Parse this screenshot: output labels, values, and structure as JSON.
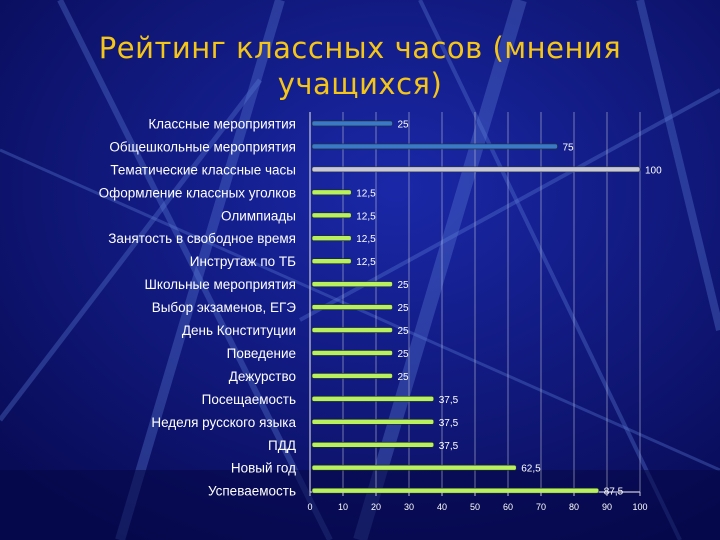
{
  "slide": {
    "title_line1": "Рейтинг классных часов (мнения",
    "title_line2": "учащихся)"
  },
  "colors": {
    "background": "#0b0f6e",
    "title": "#f5c518",
    "bar_green": "#b8f060",
    "bar_blue": "#3a78c8",
    "bar_gray": "#c8c8d8",
    "grid": "#c8c8d8",
    "text": "#ffffff"
  },
  "chart_data": {
    "type": "bar",
    "orientation": "horizontal",
    "categories": [
      "Классные мероприятия",
      "Общешкольные мероприятия",
      "Тематические классные часы",
      "Оформление классных уголков",
      "Олимпиады",
      "Занятость в свободное время",
      "Инструтаж по ТБ",
      "Школьные мероприятия",
      "Выбор экзаменов, ЕГЭ",
      "День Конституции",
      "Поведение",
      "Дежурство",
      "Посещаемость",
      "Неделя русского языка",
      "ПДД",
      "Новый год",
      "Успеваемость"
    ],
    "values": [
      25,
      75,
      100,
      12.5,
      12.5,
      12.5,
      12.5,
      25,
      25,
      25,
      25,
      25,
      37.5,
      37.5,
      37.5,
      62.5,
      87.5
    ],
    "value_labels": [
      "25",
      "75",
      "100",
      "12,5",
      "12,5",
      "12,5",
      "12,5",
      "25",
      "25",
      "25",
      "25",
      "25",
      "37,5",
      "37,5",
      "37,5",
      "62,5",
      "87,5"
    ],
    "bar_colors": [
      "blue",
      "blue",
      "gray",
      "green",
      "green",
      "green",
      "green",
      "green",
      "green",
      "green",
      "green",
      "green",
      "green",
      "green",
      "green",
      "green",
      "green"
    ],
    "xlim": [
      0,
      100
    ],
    "x_ticks": [
      "0",
      "10",
      "20",
      "30",
      "40",
      "50",
      "60",
      "70",
      "80",
      "90",
      "100"
    ],
    "grid": true,
    "legend": "none"
  }
}
